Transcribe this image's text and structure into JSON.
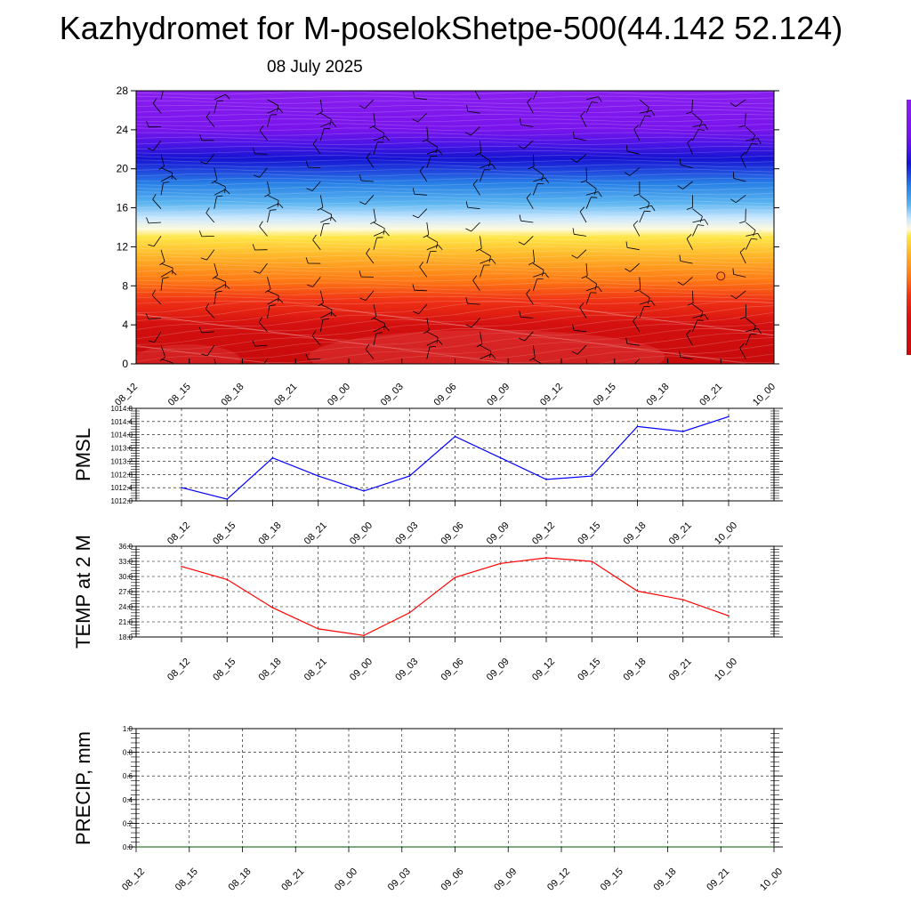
{
  "title": "Kazhydromet for M-poselokShetpe-500(44.142 52.124)",
  "subtitle": "08 July 2025",
  "chart_data": [
    {
      "id": "cross_section",
      "type": "heatmap",
      "title": "",
      "xlabel": "",
      "ylabel": "",
      "x_ticks": [
        "08_12",
        "08_15",
        "08_18",
        "08_21",
        "09_00",
        "09_03",
        "09_06",
        "09_09",
        "09_12",
        "09_15",
        "09_18",
        "09_21",
        "10_00"
      ],
      "y_ticks": [
        0,
        4,
        8,
        12,
        16,
        20,
        24,
        28
      ],
      "ylim": [
        0,
        28
      ],
      "colorscale": [
        {
          "y": 0,
          "color": "#c80a0a"
        },
        {
          "y": 4,
          "color": "#d41010"
        },
        {
          "y": 6.5,
          "color": "#f03214"
        },
        {
          "y": 8.5,
          "color": "#ff7814"
        },
        {
          "y": 11,
          "color": "#ffb428"
        },
        {
          "y": 13,
          "color": "#ffe646"
        },
        {
          "y": 13.8,
          "color": "#fffadc"
        },
        {
          "y": 15,
          "color": "#c8e6ff"
        },
        {
          "y": 16.5,
          "color": "#5ab4f0"
        },
        {
          "y": 18.5,
          "color": "#2880e6"
        },
        {
          "y": 20,
          "color": "#1e3cdc"
        },
        {
          "y": 21,
          "color": "#1414d2"
        },
        {
          "y": 22.5,
          "color": "#4a14e6"
        },
        {
          "y": 24,
          "color": "#7814ec"
        },
        {
          "y": 28,
          "color": "#8a1ef0"
        }
      ],
      "legend": "colorbar at right edge",
      "marker": {
        "label": "circle",
        "x": "09_21",
        "y": 9
      },
      "grid": false
    },
    {
      "id": "pmsl",
      "type": "line",
      "ylabel": "PMSL",
      "x": [
        "08_12",
        "08_15",
        "08_18",
        "08_21",
        "09_00",
        "09_03",
        "09_06",
        "09_09",
        "09_12",
        "09_15",
        "09_18",
        "09_21",
        "10_00"
      ],
      "series": [
        {
          "color": "#0000ff",
          "values": [
            1012.4,
            1012.05,
            1013.3,
            1012.75,
            1012.3,
            1012.75,
            1013.95,
            1013.3,
            1012.65,
            1012.75,
            1014.25,
            1014.1,
            1014.55
          ]
        }
      ],
      "ylim": [
        1012.0,
        1014.8
      ],
      "y_ticks": [
        "1012.0",
        "1012.4",
        "1012.8",
        "1013.2",
        "1013.6",
        "1014.0",
        "1014.4",
        "1014.8"
      ],
      "grid": true
    },
    {
      "id": "temp",
      "type": "line",
      "ylabel": "TEMP at 2 M",
      "x": [
        "08_12",
        "08_15",
        "08_18",
        "08_21",
        "09_00",
        "09_03",
        "09_06",
        "09_09",
        "09_12",
        "09_15",
        "09_18",
        "09_21",
        "10_00"
      ],
      "series": [
        {
          "color": "#ff0000",
          "values": [
            32.0,
            29.4,
            23.8,
            19.6,
            18.3,
            22.8,
            29.8,
            32.6,
            33.7,
            33.0,
            27.1,
            25.4,
            22.2
          ]
        }
      ],
      "ylim": [
        18.0,
        36.0
      ],
      "y_ticks": [
        "18.0",
        "21.0",
        "24.0",
        "27.0",
        "30.0",
        "33.0",
        "36.0"
      ],
      "grid": true
    },
    {
      "id": "precip",
      "type": "line",
      "ylabel": "PRECIP, mm",
      "x": [
        "08_12",
        "08_15",
        "08_18",
        "08_21",
        "09_00",
        "09_03",
        "09_06",
        "09_09",
        "09_12",
        "09_15",
        "09_18",
        "09_21",
        "10_00"
      ],
      "series": [
        {
          "color": "#2e7d32",
          "values": [
            0,
            0,
            0,
            0,
            0,
            0,
            0,
            0,
            0,
            0,
            0,
            0,
            0
          ]
        }
      ],
      "ylim": [
        0.0,
        1.0
      ],
      "y_ticks": [
        "0.0",
        "0.2",
        "0.4",
        "0.6",
        "0.8",
        "1.0"
      ],
      "grid": true
    }
  ]
}
